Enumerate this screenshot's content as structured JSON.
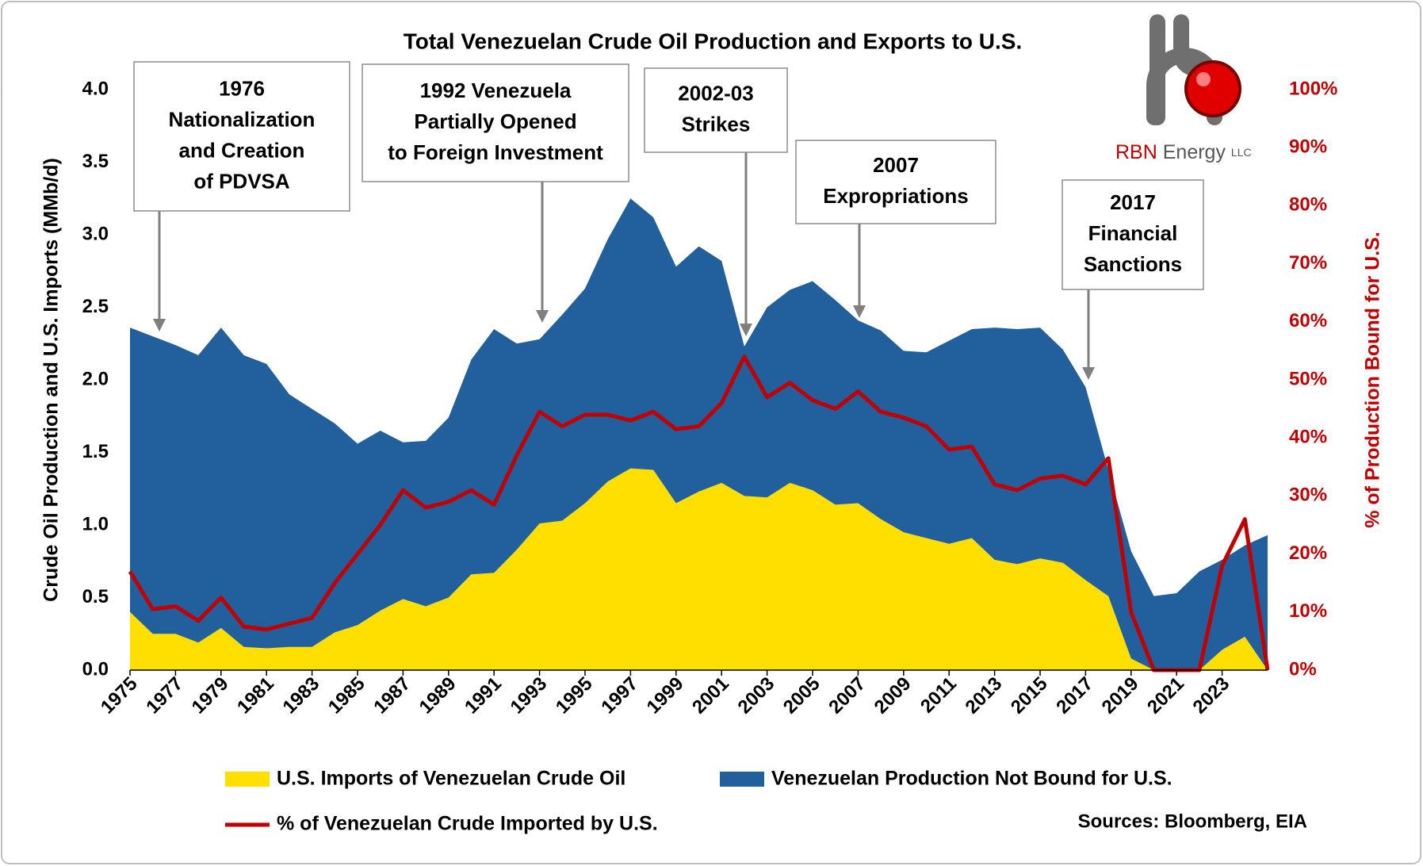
{
  "chart_data": {
    "type": "area",
    "title": "Total Venezuelan Crude Oil Production and Exports to U.S.",
    "y_label": "Crude Oil Production and U.S. Imports (MMb/d)",
    "y2_label": "% of Production Bound for U.S.",
    "source": "Sources: Bloomberg, EIA",
    "logo": {
      "brand": "RBN",
      "word": "Energy",
      "suffix": "LLC"
    },
    "annotations": [
      {
        "text": [
          "1976",
          "Nationalization",
          "and Creation",
          "of PDVSA"
        ]
      },
      {
        "text": [
          "1992 Venezuela",
          "Partially Opened",
          "to Foreign Investment"
        ]
      },
      {
        "text": [
          "2002-03",
          "Strikes"
        ]
      },
      {
        "text": [
          "2007",
          "Expropriations"
        ]
      },
      {
        "text": [
          "2017",
          "Financial",
          "Sanctions"
        ]
      }
    ],
    "x": [
      1975,
      1976,
      1977,
      1978,
      1979,
      1980,
      1981,
      1982,
      1983,
      1984,
      1985,
      1986,
      1987,
      1988,
      1989,
      1990,
      1991,
      1992,
      1993,
      1994,
      1995,
      1996,
      1997,
      1998,
      1999,
      2000,
      2001,
      2002,
      2003,
      2004,
      2005,
      2006,
      2007,
      2008,
      2009,
      2010,
      2011,
      2012,
      2013,
      2014,
      2015,
      2016,
      2017,
      2018,
      2019,
      2020,
      2021,
      2022,
      2023,
      2024,
      2025
    ],
    "xlim": [
      1975,
      2025
    ],
    "xticks": [
      1975,
      1977,
      1979,
      1981,
      1983,
      1985,
      1987,
      1989,
      1991,
      1993,
      1995,
      1997,
      1999,
      2001,
      2003,
      2005,
      2007,
      2009,
      2011,
      2013,
      2015,
      2017,
      2019,
      2021,
      2023
    ],
    "ylim": [
      0,
      4
    ],
    "yticks": [
      {
        "value": 0,
        "label": "0.0"
      },
      0.5,
      {
        "value": 1,
        "label": "1.0"
      },
      1.5,
      {
        "value": 2,
        "label": "2.0"
      },
      2.5,
      {
        "value": 3,
        "label": "3.0"
      },
      3.5,
      {
        "value": 4,
        "label": "4.0"
      }
    ],
    "y2lim": [
      0,
      100
    ],
    "y2ticks": [
      {
        "value": 0,
        "label": "0%"
      },
      {
        "value": 10,
        "label": "10%"
      },
      {
        "value": 20,
        "label": "20%"
      },
      {
        "value": 30,
        "label": "30%"
      },
      {
        "value": 40,
        "label": "40%"
      },
      {
        "value": 50,
        "label": "50%"
      },
      {
        "value": 60,
        "label": "60%"
      },
      {
        "value": 70,
        "label": "70%"
      },
      {
        "value": 80,
        "label": "80%"
      },
      {
        "value": 90,
        "label": "90%"
      },
      {
        "value": 100,
        "label": "100%"
      }
    ],
    "grid": false,
    "series": [
      {
        "name": "U.S. Imports of Venezuelan Crude Oil",
        "color": "#ffdf00",
        "stacked": true,
        "values": [
          0.4,
          0.25,
          0.25,
          0.19,
          0.29,
          0.16,
          0.15,
          0.16,
          0.16,
          0.26,
          0.31,
          0.41,
          0.49,
          0.44,
          0.5,
          0.66,
          0.67,
          0.83,
          1.01,
          1.03,
          1.15,
          1.3,
          1.39,
          1.38,
          1.15,
          1.23,
          1.29,
          1.2,
          1.19,
          1.29,
          1.24,
          1.14,
          1.15,
          1.04,
          0.95,
          0.91,
          0.87,
          0.91,
          0.76,
          0.73,
          0.77,
          0.74,
          0.62,
          0.51,
          0.08,
          0,
          0,
          0,
          0.14,
          0.23,
          0
        ]
      },
      {
        "name": "Venezuelan Production Not Bound for U.S.",
        "color": "#22609d",
        "stacked": true,
        "values": [
          1.96,
          2.05,
          1.99,
          1.98,
          2.07,
          2.01,
          1.96,
          1.74,
          1.64,
          1.44,
          1.25,
          1.24,
          1.08,
          1.14,
          1.24,
          1.48,
          1.68,
          1.42,
          1.27,
          1.42,
          1.48,
          1.67,
          1.86,
          1.74,
          1.63,
          1.69,
          1.53,
          1.03,
          1.31,
          1.33,
          1.44,
          1.41,
          1.26,
          1.3,
          1.25,
          1.28,
          1.4,
          1.44,
          1.6,
          1.62,
          1.59,
          1.47,
          1.33,
          0.87,
          0.74,
          0.51,
          0.53,
          0.68,
          0.62,
          0.63,
          0.93
        ]
      },
      {
        "name": "% of Venezuelan Crude Imported by U.S.",
        "color": "#c00000",
        "type": "line",
        "axis": "y2",
        "values": [
          17,
          10.5,
          11,
          8.5,
          12.5,
          7.5,
          7,
          8,
          9,
          15,
          20,
          25,
          31,
          28,
          29,
          31,
          28.5,
          37,
          44.5,
          42,
          44,
          44,
          43,
          44.5,
          41.5,
          42,
          46,
          54,
          47,
          49.5,
          46.5,
          45,
          48,
          44.5,
          43.5,
          42,
          38,
          38.5,
          32,
          31,
          33,
          33.5,
          32,
          36.5,
          10,
          0,
          0,
          0,
          18,
          26,
          0
        ]
      }
    ]
  }
}
